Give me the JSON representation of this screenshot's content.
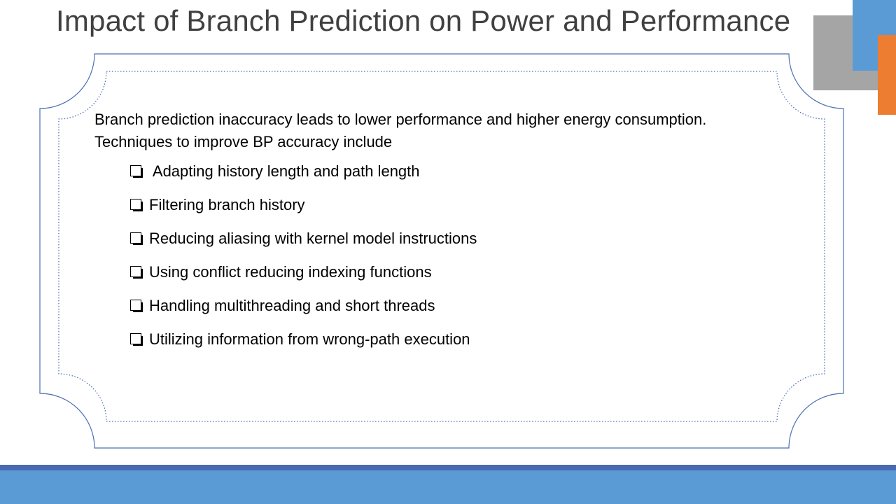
{
  "slide": {
    "title": "Impact of Branch Prediction on Power and Performance",
    "intro_lines": [
      "Branch prediction inaccuracy leads to lower performance and higher energy consumption.",
      "Techniques to improve BP accuracy include"
    ],
    "bullets": [
      " Adapting history length and path length",
      "Filtering branch history",
      "Reducing aliasing with kernel model instructions",
      "Using conflict reducing indexing functions",
      "Handling multithreading and short threads",
      "Utilizing information from wrong-path execution"
    ],
    "bullet_icon": "checkbox-square-icon"
  },
  "colors": {
    "title": "#404040",
    "frame_outer": "#4a6fb3",
    "frame_inner": "#4a6fb3",
    "accent_gray": "#a5a5a5",
    "accent_blue": "#5b9bd5",
    "accent_orange": "#ed7d31",
    "band_dark": "#4a69b0",
    "band_light": "#5b9bd5"
  }
}
